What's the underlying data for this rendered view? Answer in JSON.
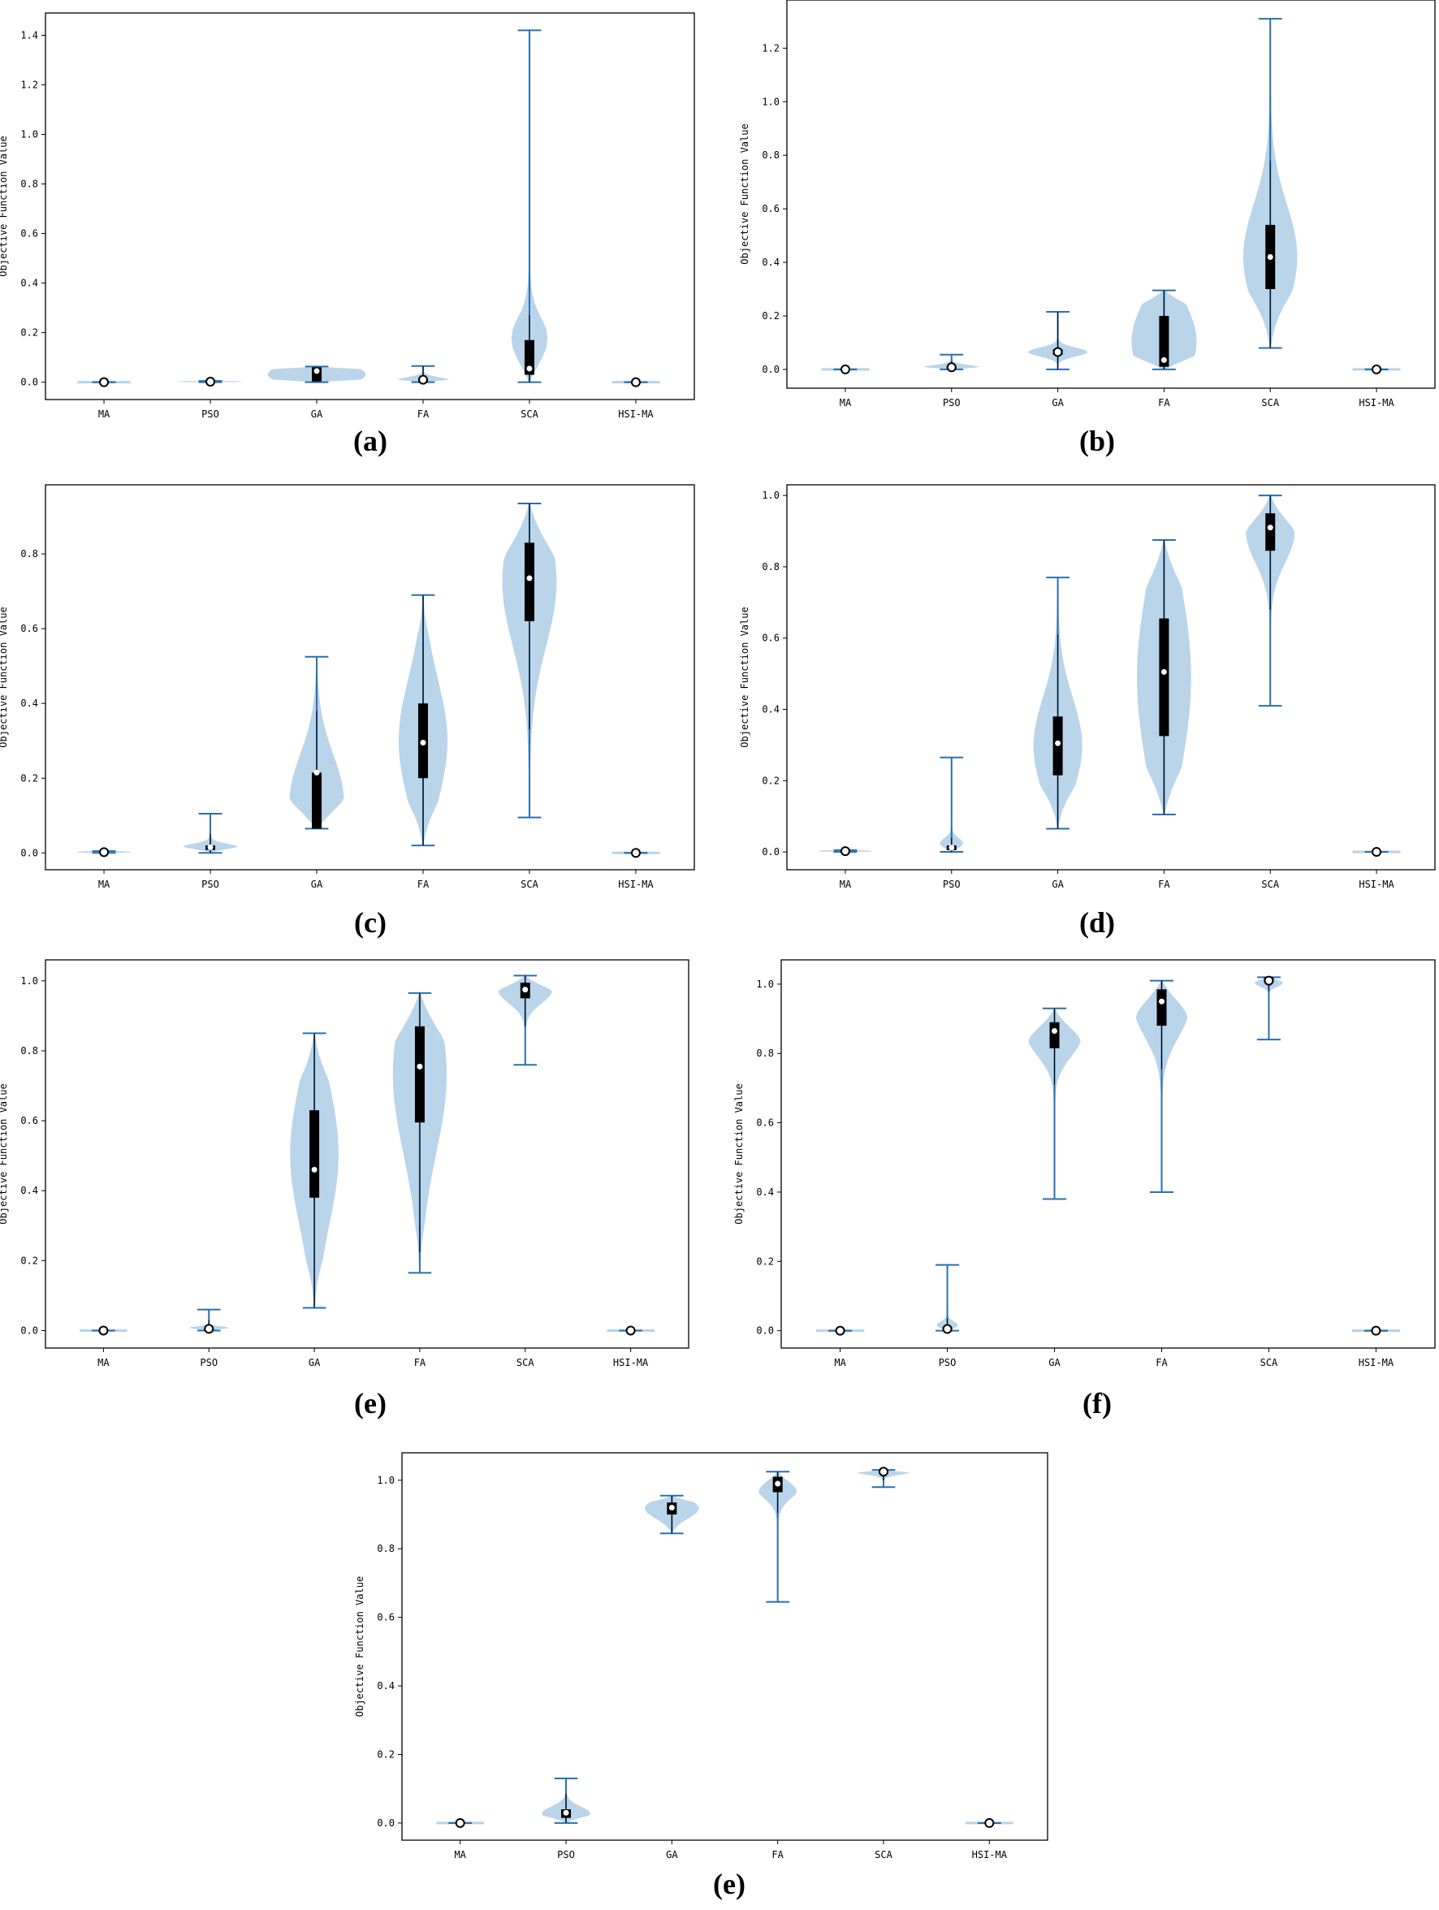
{
  "chart_data": [
    {
      "panel": "(a)",
      "type": "violin",
      "ylabel": "Objective Function Value",
      "ylim": [
        -0.07,
        1.49
      ],
      "yticks": [
        "0.0",
        "0.2",
        "0.4",
        "0.6",
        "0.8",
        "1.0",
        "1.2",
        "1.4"
      ],
      "categories": [
        "MA",
        "PSO",
        "GA",
        "FA",
        "SCA",
        "HSI-MA"
      ],
      "series": [
        {
          "name": "MA",
          "min": 0.0,
          "max": 0.0,
          "q1": 0.0,
          "median": 0.0,
          "q3": 0.0,
          "whisk_lo": 0.0,
          "whisk_hi": 0.0,
          "width": 0.55,
          "hollow": true
        },
        {
          "name": "PSO",
          "min": 0.0,
          "max": 0.005,
          "q1": 0.0,
          "median": 0.002,
          "q3": 0.004,
          "whisk_lo": 0.0,
          "whisk_hi": 0.005,
          "width": 0.6,
          "hollow": true
        },
        {
          "name": "GA",
          "min": 0.0,
          "max": 0.063,
          "q1": 0.003,
          "median": 0.045,
          "q3": 0.06,
          "whisk_lo": 0.0,
          "whisk_hi": 0.063,
          "width": 0.9
        },
        {
          "name": "FA",
          "min": 0.0,
          "max": 0.065,
          "q1": 0.0,
          "median": 0.01,
          "q3": 0.015,
          "whisk_lo": 0.0,
          "whisk_hi": 0.065,
          "width": 0.5,
          "hollow": true
        },
        {
          "name": "SCA",
          "min": 0.0,
          "max": 1.42,
          "q1": 0.03,
          "median": 0.055,
          "q3": 0.17,
          "whisk_lo": 0.0,
          "whisk_hi": 0.27,
          "width": 0.55
        },
        {
          "name": "HSI-MA",
          "min": 0.0,
          "max": 0.0,
          "q1": 0.0,
          "median": 0.0,
          "q3": 0.0,
          "whisk_lo": 0.0,
          "whisk_hi": 0.0,
          "width": 0.5,
          "hollow": true
        }
      ]
    },
    {
      "panel": "(b)",
      "type": "violin",
      "ylabel": "Objective Function Value",
      "ylim": [
        -0.07,
        1.38
      ],
      "yticks": [
        "0.0",
        "0.2",
        "0.4",
        "0.6",
        "0.8",
        "1.0",
        "1.2"
      ],
      "categories": [
        "MA",
        "PSO",
        "GA",
        "FA",
        "SCA",
        "HSI-MA"
      ],
      "series": [
        {
          "name": "MA",
          "min": 0.0,
          "max": 0.0,
          "q1": 0.0,
          "median": 0.0,
          "q3": 0.0,
          "whisk_lo": 0.0,
          "whisk_hi": 0.0,
          "width": 0.5,
          "hollow": true
        },
        {
          "name": "PSO",
          "min": 0.0,
          "max": 0.055,
          "q1": 0.0,
          "median": 0.008,
          "q3": 0.012,
          "whisk_lo": 0.0,
          "whisk_hi": 0.03,
          "width": 0.55,
          "hollow": true
        },
        {
          "name": "GA",
          "min": 0.0,
          "max": 0.215,
          "q1": 0.055,
          "median": 0.065,
          "q3": 0.075,
          "whisk_lo": 0.0,
          "whisk_hi": 0.215,
          "width": 0.55,
          "hollow": true
        },
        {
          "name": "FA",
          "min": 0.0,
          "max": 0.295,
          "q1": 0.01,
          "median": 0.035,
          "q3": 0.2,
          "whisk_lo": 0.0,
          "whisk_hi": 0.295,
          "width": 0.6
        },
        {
          "name": "SCA",
          "min": 0.08,
          "max": 1.31,
          "q1": 0.3,
          "median": 0.42,
          "q3": 0.54,
          "whisk_lo": 0.08,
          "whisk_hi": 0.78,
          "width": 0.5
        },
        {
          "name": "HSI-MA",
          "min": 0.0,
          "max": 0.0,
          "q1": 0.0,
          "median": 0.0,
          "q3": 0.0,
          "whisk_lo": 0.0,
          "whisk_hi": 0.0,
          "width": 0.5,
          "hollow": true
        }
      ]
    },
    {
      "panel": "(c)",
      "type": "violin",
      "ylabel": "Objective Function Value",
      "ylim": [
        -0.045,
        0.985
      ],
      "yticks": [
        "0.0",
        "0.2",
        "0.4",
        "0.6",
        "0.8"
      ],
      "categories": [
        "MA",
        "PSO",
        "GA",
        "FA",
        "SCA",
        "HSI-MA"
      ],
      "series": [
        {
          "name": "MA",
          "min": 0.0,
          "max": 0.005,
          "q1": 0.0,
          "median": 0.002,
          "q3": 0.004,
          "whisk_lo": 0.0,
          "whisk_hi": 0.005,
          "width": 0.5,
          "hollow": true
        },
        {
          "name": "PSO",
          "min": 0.0,
          "max": 0.105,
          "q1": 0.008,
          "median": 0.015,
          "q3": 0.02,
          "whisk_lo": 0.0,
          "whisk_hi": 0.05,
          "width": 0.55
        },
        {
          "name": "GA",
          "min": 0.065,
          "max": 0.525,
          "q1": 0.065,
          "median": 0.215,
          "q3": 0.215,
          "whisk_lo": 0.065,
          "whisk_hi": 0.38,
          "width": 0.5
        },
        {
          "name": "FA",
          "min": 0.02,
          "max": 0.69,
          "q1": 0.2,
          "median": 0.295,
          "q3": 0.4,
          "whisk_lo": 0.02,
          "whisk_hi": 0.69,
          "width": 0.45
        },
        {
          "name": "SCA",
          "min": 0.095,
          "max": 0.935,
          "q1": 0.62,
          "median": 0.735,
          "q3": 0.83,
          "whisk_lo": 0.33,
          "whisk_hi": 0.935,
          "width": 0.5
        },
        {
          "name": "HSI-MA",
          "min": 0.0,
          "max": 0.0,
          "q1": 0.0,
          "median": 0.0,
          "q3": 0.0,
          "whisk_lo": 0.0,
          "whisk_hi": 0.0,
          "width": 0.5,
          "hollow": true
        }
      ]
    },
    {
      "panel": "(d)",
      "type": "violin",
      "ylabel": "Objective Function Value",
      "ylim": [
        -0.05,
        1.03
      ],
      "yticks": [
        "0.0",
        "0.2",
        "0.4",
        "0.6",
        "0.8",
        "1.0"
      ],
      "categories": [
        "MA",
        "PSO",
        "GA",
        "FA",
        "SCA",
        "HSI-MA"
      ],
      "series": [
        {
          "name": "MA",
          "min": 0.0,
          "max": 0.005,
          "q1": 0.0,
          "median": 0.002,
          "q3": 0.004,
          "whisk_lo": 0.0,
          "whisk_hi": 0.005,
          "width": 0.5,
          "hollow": true
        },
        {
          "name": "PSO",
          "min": 0.0,
          "max": 0.265,
          "q1": 0.005,
          "median": 0.012,
          "q3": 0.018,
          "whisk_lo": 0.0,
          "whisk_hi": 0.04,
          "width": 0.5
        },
        {
          "name": "GA",
          "min": 0.065,
          "max": 0.77,
          "q1": 0.215,
          "median": 0.305,
          "q3": 0.38,
          "whisk_lo": 0.065,
          "whisk_hi": 0.61,
          "width": 0.45
        },
        {
          "name": "FA",
          "min": 0.105,
          "max": 0.875,
          "q1": 0.325,
          "median": 0.505,
          "q3": 0.655,
          "whisk_lo": 0.105,
          "whisk_hi": 0.875,
          "width": 0.5
        },
        {
          "name": "SCA",
          "min": 0.41,
          "max": 1.0,
          "q1": 0.845,
          "median": 0.91,
          "q3": 0.95,
          "whisk_lo": 0.68,
          "whisk_hi": 1.0,
          "width": 0.45
        },
        {
          "name": "HSI-MA",
          "min": 0.0,
          "max": 0.0,
          "q1": 0.0,
          "median": 0.0,
          "q3": 0.0,
          "whisk_lo": 0.0,
          "whisk_hi": 0.0,
          "width": 0.5,
          "hollow": true
        }
      ]
    },
    {
      "panel": "(e)",
      "type": "violin",
      "ylabel": "Objective Function Value",
      "ylim": [
        -0.05,
        1.06
      ],
      "yticks": [
        "0.0",
        "0.2",
        "0.4",
        "0.6",
        "0.8",
        "1.0"
      ],
      "categories": [
        "MA",
        "PSO",
        "GA",
        "FA",
        "SCA",
        "HSI-MA"
      ],
      "series": [
        {
          "name": "MA",
          "min": 0.0,
          "max": 0.0,
          "q1": 0.0,
          "median": 0.0,
          "q3": 0.0,
          "whisk_lo": 0.0,
          "whisk_hi": 0.0,
          "width": 0.5,
          "hollow": true
        },
        {
          "name": "PSO",
          "min": 0.0,
          "max": 0.06,
          "q1": 0.002,
          "median": 0.005,
          "q3": 0.008,
          "whisk_lo": 0.0,
          "whisk_hi": 0.03,
          "width": 0.55,
          "hollow": true
        },
        {
          "name": "GA",
          "min": 0.065,
          "max": 0.85,
          "q1": 0.38,
          "median": 0.46,
          "q3": 0.63,
          "whisk_lo": 0.065,
          "whisk_hi": 0.85,
          "width": 0.45
        },
        {
          "name": "FA",
          "min": 0.165,
          "max": 0.965,
          "q1": 0.595,
          "median": 0.755,
          "q3": 0.87,
          "whisk_lo": 0.225,
          "whisk_hi": 0.965,
          "width": 0.5
        },
        {
          "name": "SCA",
          "min": 0.76,
          "max": 1.015,
          "q1": 0.95,
          "median": 0.975,
          "q3": 0.995,
          "whisk_lo": 0.87,
          "whisk_hi": 1.015,
          "width": 0.5
        },
        {
          "name": "HSI-MA",
          "min": 0.0,
          "max": 0.0,
          "q1": 0.0,
          "median": 0.0,
          "q3": 0.0,
          "whisk_lo": 0.0,
          "whisk_hi": 0.0,
          "width": 0.5,
          "hollow": true
        }
      ]
    },
    {
      "panel": "(f)",
      "type": "violin",
      "ylabel": "Objective Function Value",
      "ylim": [
        -0.05,
        1.07
      ],
      "yticks": [
        "0.0",
        "0.2",
        "0.4",
        "0.6",
        "0.8",
        "1.0"
      ],
      "categories": [
        "MA",
        "PSO",
        "GA",
        "FA",
        "SCA",
        "HSI-MA"
      ],
      "series": [
        {
          "name": "MA",
          "min": 0.0,
          "max": 0.0,
          "q1": 0.0,
          "median": 0.0,
          "q3": 0.0,
          "whisk_lo": 0.0,
          "whisk_hi": 0.0,
          "width": 0.5,
          "hollow": true
        },
        {
          "name": "PSO",
          "min": 0.0,
          "max": 0.19,
          "q1": 0.003,
          "median": 0.005,
          "q3": 0.01,
          "whisk_lo": 0.0,
          "whisk_hi": 0.035,
          "width": 0.5,
          "hollow": true
        },
        {
          "name": "GA",
          "min": 0.38,
          "max": 0.93,
          "q1": 0.815,
          "median": 0.865,
          "q3": 0.89,
          "whisk_lo": 0.71,
          "whisk_hi": 0.93,
          "width": 0.5
        },
        {
          "name": "FA",
          "min": 0.4,
          "max": 1.01,
          "q1": 0.88,
          "median": 0.95,
          "q3": 0.985,
          "whisk_lo": 0.755,
          "whisk_hi": 1.01,
          "width": 0.5
        },
        {
          "name": "SCA",
          "min": 0.84,
          "max": 1.02,
          "q1": 1.005,
          "median": 1.01,
          "q3": 1.02,
          "whisk_lo": 0.98,
          "whisk_hi": 1.02,
          "width": 0.6,
          "hollow": true
        },
        {
          "name": "HSI-MA",
          "min": 0.0,
          "max": 0.0,
          "q1": 0.0,
          "median": 0.0,
          "q3": 0.0,
          "whisk_lo": 0.0,
          "whisk_hi": 0.0,
          "width": 0.5,
          "hollow": true
        }
      ]
    },
    {
      "panel": "(e)",
      "type": "violin",
      "ylabel": "Objective Function Value",
      "ylim": [
        -0.05,
        1.08
      ],
      "yticks": [
        "0.0",
        "0.2",
        "0.4",
        "0.6",
        "0.8",
        "1.0"
      ],
      "categories": [
        "MA",
        "PSO",
        "GA",
        "FA",
        "SCA",
        "HSI-MA"
      ],
      "series": [
        {
          "name": "MA",
          "min": 0.0,
          "max": 0.0,
          "q1": 0.0,
          "median": 0.0,
          "q3": 0.0,
          "whisk_lo": 0.0,
          "whisk_hi": 0.0,
          "width": 0.5,
          "hollow": true
        },
        {
          "name": "PSO",
          "min": 0.0,
          "max": 0.13,
          "q1": 0.015,
          "median": 0.03,
          "q3": 0.04,
          "whisk_lo": 0.0,
          "whisk_hi": 0.085,
          "width": 0.45
        },
        {
          "name": "GA",
          "min": 0.845,
          "max": 0.955,
          "q1": 0.9,
          "median": 0.92,
          "q3": 0.935,
          "whisk_lo": 0.845,
          "whisk_hi": 0.955,
          "width": 0.5
        },
        {
          "name": "FA",
          "min": 0.645,
          "max": 1.025,
          "q1": 0.965,
          "median": 0.99,
          "q3": 1.01,
          "whisk_lo": 0.905,
          "whisk_hi": 1.025,
          "width": 0.45
        },
        {
          "name": "SCA",
          "min": 0.98,
          "max": 1.03,
          "q1": 1.02,
          "median": 1.025,
          "q3": 1.03,
          "whisk_lo": 1.0,
          "whisk_hi": 1.03,
          "width": 0.55,
          "hollow": true
        },
        {
          "name": "HSI-MA",
          "min": 0.0,
          "max": 0.0,
          "q1": 0.0,
          "median": 0.0,
          "q3": 0.0,
          "whisk_lo": 0.0,
          "whisk_hi": 0.0,
          "width": 0.5,
          "hollow": true
        }
      ]
    }
  ]
}
